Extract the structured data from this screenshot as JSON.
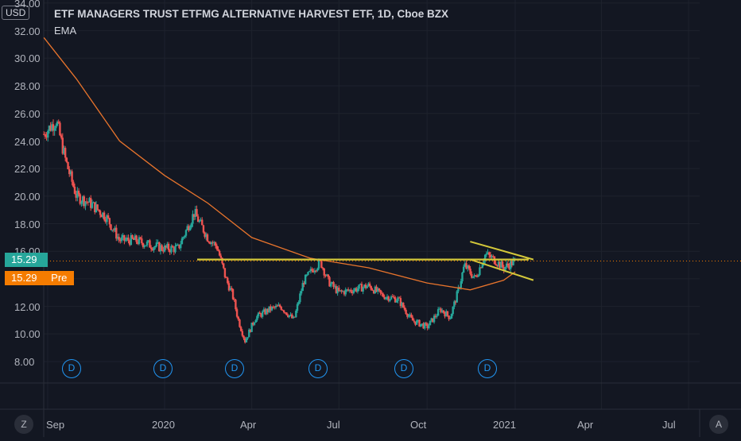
{
  "header": {
    "currency": "USD",
    "title": "ETF MANAGERS TRUST ETFMG ALTERNATIVE HARVEST ETF, 1D, Cboe BZX",
    "indicator": "EMA"
  },
  "price_axis": {
    "labels": [
      "34.00",
      "32.00",
      "30.00",
      "28.00",
      "26.00",
      "24.00",
      "22.00",
      "20.00",
      "18.00",
      "16.00",
      "12.00",
      "10.00",
      "8.00"
    ],
    "current_price": "15.29",
    "pre_price": "15.29",
    "pre_label": "Pre"
  },
  "time_axis": {
    "labels": [
      "Sep",
      "2020",
      "Apr",
      "Jul",
      "Oct",
      "2021",
      "Apr",
      "Jul"
    ]
  },
  "dividend_markers": [
    "D",
    "D",
    "D",
    "D",
    "D",
    "D"
  ],
  "buttons": {
    "log_scale": "Z",
    "auto_scale": "A"
  },
  "colors": {
    "background": "#131722",
    "up": "#26a69a",
    "down": "#ef5350",
    "ema": "#e8742c",
    "trendline": "#d4c83a",
    "last_price": "#26a69a",
    "pre_market": "#f57c00",
    "dividend": "#2196f3"
  },
  "chart_data": {
    "type": "candlestick",
    "title": "ETF MANAGERS TRUST ETFMG ALTERNATIVE HARVEST ETF, 1D, Cboe BZX",
    "ylim": [
      7,
      34.5
    ],
    "x": [
      "2019-08-28",
      "2019-09-10",
      "2019-09-20",
      "2019-10-01",
      "2019-10-15",
      "2019-11-01",
      "2019-11-15",
      "2019-12-01",
      "2019-12-15",
      "2020-01-01",
      "2020-01-15",
      "2020-02-01",
      "2020-02-15",
      "2020-02-25",
      "2020-03-05",
      "2020-03-12",
      "2020-03-18",
      "2020-03-25",
      "2020-04-05",
      "2020-04-20",
      "2020-05-01",
      "2020-05-15",
      "2020-05-25",
      "2020-06-05",
      "2020-06-12",
      "2020-06-20",
      "2020-07-01",
      "2020-07-15",
      "2020-08-01",
      "2020-08-15",
      "2020-09-01",
      "2020-09-15",
      "2020-10-01",
      "2020-10-15",
      "2020-10-25",
      "2020-11-02",
      "2020-11-09",
      "2020-11-20",
      "2020-12-01",
      "2020-12-10",
      "2020-12-20",
      "2021-01-01"
    ],
    "close": [
      24.5,
      25.5,
      22.5,
      20.0,
      19.5,
      18.5,
      16.8,
      16.8,
      16.5,
      16.2,
      16.2,
      18.8,
      17.0,
      16.3,
      14.0,
      12.8,
      11.0,
      9.5,
      11.2,
      11.8,
      12.0,
      11.0,
      13.8,
      14.8,
      15.2,
      13.8,
      13.0,
      13.2,
      13.5,
      12.8,
      12.5,
      11.0,
      10.5,
      11.8,
      11.2,
      13.0,
      15.0,
      14.0,
      15.8,
      15.4,
      14.8,
      15.29
    ],
    "series": [
      {
        "name": "EMA",
        "x": [
          "2019-08-28",
          "2019-10-01",
          "2019-11-15",
          "2020-01-01",
          "2020-02-15",
          "2020-04-01",
          "2020-06-01",
          "2020-08-01",
          "2020-10-01",
          "2020-11-15",
          "2020-12-20",
          "2021-01-01"
        ],
        "values": [
          31.5,
          28.5,
          24.0,
          21.5,
          19.5,
          17.0,
          15.5,
          14.8,
          13.7,
          13.2,
          13.9,
          14.5
        ]
      }
    ],
    "current_price": 15.29,
    "drawings": [
      {
        "type": "horizontal_resistance",
        "value": 15.4
      },
      {
        "type": "channel_upper",
        "from": [
          "2020-11-15",
          16.7
        ],
        "to": [
          "2021-01-20",
          15.4
        ]
      },
      {
        "type": "channel_lower",
        "from": [
          "2020-11-15",
          15.4
        ],
        "to": [
          "2021-01-20",
          13.9
        ]
      }
    ],
    "grid": true
  }
}
